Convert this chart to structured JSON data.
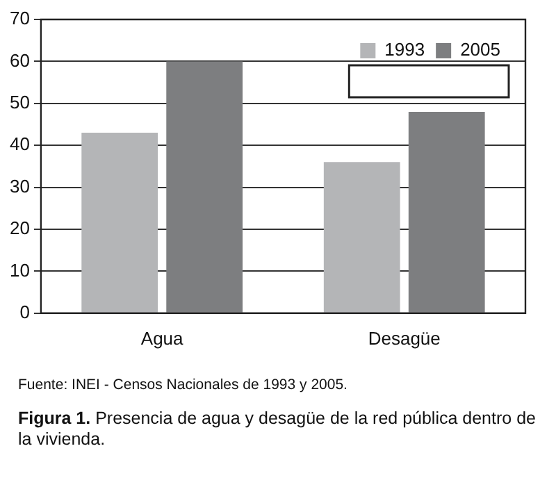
{
  "chart_data": {
    "type": "bar",
    "categories": [
      "Agua",
      "Desagüe"
    ],
    "series": [
      {
        "name": "1993",
        "color": "#b4b5b7",
        "values": [
          43,
          36
        ]
      },
      {
        "name": "2005",
        "color": "#7d7e80",
        "values": [
          60,
          48
        ]
      }
    ],
    "ylim": [
      0,
      70
    ],
    "yticks": [
      0,
      10,
      20,
      30,
      40,
      50,
      60,
      70
    ],
    "grid": "y",
    "legend": "top right",
    "annotations": [
      "Fuente: INEI - Censos Nacionales de 1993 y 2005.",
      "Figura 1.",
      "Presencia de agua y desagüe de la red pública dentro de la vivienda."
    ]
  }
}
